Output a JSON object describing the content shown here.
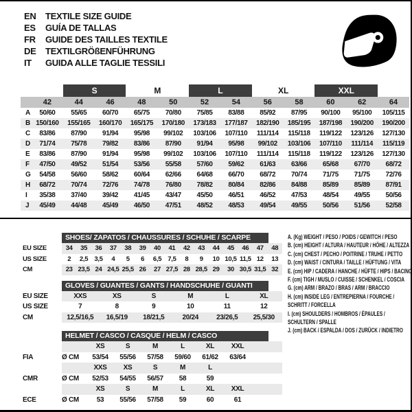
{
  "header": {
    "languages": [
      {
        "code": "EN",
        "title": "TEXTILE SIZE GUIDE"
      },
      {
        "code": "ES",
        "title": "GUÍA DE TALLAS"
      },
      {
        "code": "FR",
        "title": "GUIDE DES TAILLES TEXTILE"
      },
      {
        "code": "DE",
        "title": "TEXTILGRÖßENFÜHRUNG"
      },
      {
        "code": "IT",
        "title": "GUIDA ALLE TAGLIE TESSILI"
      }
    ]
  },
  "size_table": {
    "groups": [
      {
        "label": "S",
        "dark": true
      },
      {
        "label": "M",
        "dark": false
      },
      {
        "label": "L",
        "dark": true
      },
      {
        "label": "XL",
        "dark": false
      },
      {
        "label": "XXL",
        "dark": true
      }
    ],
    "columns": [
      "42",
      "44",
      "46",
      "48",
      "50",
      "52",
      "54",
      "56",
      "58",
      "60",
      "62",
      "64"
    ],
    "rows": [
      {
        "label": "A",
        "shaded": false,
        "values": [
          "50/60",
          "55/65",
          "60/70",
          "65/75",
          "70/80",
          "75/85",
          "83/88",
          "85/92",
          "87/95",
          "90/100",
          "95/100",
          "105/115"
        ]
      },
      {
        "label": "B",
        "shaded": true,
        "values": [
          "150/160",
          "155/165",
          "160/170",
          "165/175",
          "170/180",
          "173/183",
          "177/187",
          "182/190",
          "185/195",
          "187/198",
          "190/200",
          "190/200"
        ]
      },
      {
        "label": "C",
        "shaded": false,
        "values": [
          "83/86",
          "87/90",
          "91/94",
          "95/98",
          "99/102",
          "103/106",
          "107/110",
          "111/114",
          "115/118",
          "119/122",
          "123/126",
          "127/130"
        ]
      },
      {
        "label": "D",
        "shaded": true,
        "values": [
          "71/74",
          "75/78",
          "79/82",
          "83/86",
          "87/90",
          "91/94",
          "95/98",
          "99/102",
          "103/106",
          "107/110",
          "111/114",
          "115/119"
        ]
      },
      {
        "label": "E",
        "shaded": false,
        "values": [
          "83/86",
          "87/90",
          "91/94",
          "95/98",
          "99/102",
          "103/106",
          "107/110",
          "111/114",
          "115/118",
          "119/122",
          "123/126",
          "127/130"
        ]
      },
      {
        "label": "F",
        "shaded": true,
        "values": [
          "47/50",
          "49/52",
          "51/54",
          "53/56",
          "55/58",
          "57/60",
          "59/62",
          "61/63",
          "63/66",
          "65/68",
          "67/70",
          "68/72"
        ]
      },
      {
        "label": "G",
        "shaded": false,
        "values": [
          "54/58",
          "56/60",
          "58/62",
          "60/64",
          "62/66",
          "64/68",
          "66/70",
          "68/72",
          "70/74",
          "71/75",
          "71/75",
          "72/76"
        ]
      },
      {
        "label": "H",
        "shaded": true,
        "values": [
          "68/72",
          "70/74",
          "72/76",
          "74/78",
          "76/80",
          "78/82",
          "80/84",
          "82/86",
          "84/88",
          "85/89",
          "85/89",
          "87/91"
        ]
      },
      {
        "label": "I",
        "shaded": false,
        "values": [
          "35/38",
          "37/40",
          "39/42",
          "41/45",
          "43/47",
          "45/50",
          "46/51",
          "46/52",
          "47/53",
          "48/54",
          "49/55",
          "50/56"
        ]
      },
      {
        "label": "J",
        "shaded": true,
        "values": [
          "45/49",
          "44/48",
          "45/49",
          "46/50",
          "47/51",
          "48/52",
          "48/53",
          "49/54",
          "49/55",
          "50/56",
          "51/56",
          "52/58"
        ]
      }
    ]
  },
  "shoes": {
    "title": "SHOES/ ZAPATOS / CHAUSSURES / SCHUHE / SCARPE",
    "rows": [
      {
        "label": "EU SIZE",
        "shaded": true,
        "values": [
          "34",
          "35",
          "36",
          "37",
          "38",
          "39",
          "40",
          "41",
          "42",
          "43",
          "44",
          "45",
          "46",
          "47",
          "48"
        ]
      },
      {
        "label": "US SIZE",
        "shaded": false,
        "values": [
          "2",
          "2,5",
          "3,5",
          "4",
          "5",
          "6",
          "6,5",
          "7,5",
          "8",
          "9",
          "10",
          "10,5",
          "11,5",
          "12",
          "13"
        ]
      },
      {
        "label": "CM",
        "shaded": true,
        "values": [
          "23",
          "23,5",
          "24",
          "24,5",
          "25,5",
          "26",
          "27",
          "27,5",
          "28",
          "28,5",
          "29",
          "30",
          "30,5",
          "31,5",
          "32"
        ]
      }
    ]
  },
  "gloves": {
    "title": "GLOVES / GUANTES / GANTS / HANDSCHUHE / GUANTI",
    "rows": [
      {
        "label": "EU SIZE",
        "shaded": true,
        "values": [
          "XXS",
          "XS",
          "S",
          "M",
          "L",
          "XL"
        ]
      },
      {
        "label": "US SIZE",
        "shaded": false,
        "values": [
          "7",
          "8",
          "9",
          "10",
          "11",
          "12"
        ]
      },
      {
        "label": "CM",
        "shaded": true,
        "values": [
          "12,5/16,5",
          "16,5/19",
          "18/21,5",
          "20/24",
          "23/26,5",
          "25,5/30"
        ]
      }
    ]
  },
  "helmet": {
    "title": "HELMET / CASCO / CASQUE / HELM / CASCO",
    "diameter_label": "Ø CM",
    "standards": [
      {
        "name": "FIA",
        "sizes": [
          "XS",
          "S",
          "M",
          "L",
          "XL",
          "XXL"
        ],
        "values": [
          "53/54",
          "55/56",
          "57/58",
          "59/60",
          "61/62",
          "63/64"
        ]
      },
      {
        "name": "CMR",
        "sizes": [
          "XXS",
          "XS",
          "S",
          "M",
          "L",
          ""
        ],
        "values": [
          "52/53",
          "54/55",
          "56/57",
          "58",
          "59",
          ""
        ]
      },
      {
        "name": "ECE",
        "sizes": [
          "XS",
          "S",
          "M",
          "L",
          "XL",
          "XXL"
        ],
        "values": [
          "53",
          "55/56",
          "57/58",
          "59",
          "60",
          "61"
        ]
      }
    ]
  },
  "legend": {
    "items": [
      {
        "lines": [
          "A. (Kg) WEIGHT / PESO / POIDS / GEWITCH / PESO"
        ]
      },
      {
        "lines": [
          "B. (cm) HEIGHT / ALTURA / HAUTEUR / HÖHE / ALTEZZA"
        ]
      },
      {
        "lines": [
          "C. (cm) CHEST / PECHO / POITRINE / TRUHE / PETTO"
        ]
      },
      {
        "lines": [
          "D. (cm) WAIST / CINTURA / TAILLE / HÜFTUNG / VITA"
        ]
      },
      {
        "lines": [
          "E. (cm) HIP / CADERA / HANCHE / HÜFTE / HIPS / BACINO"
        ]
      },
      {
        "lines": [
          "F. (cm) TIGH / MUSLO / CUISSE / SCHENKEL / COSCIA"
        ]
      },
      {
        "lines": [
          "G. (cm) ARM / BRAZO / BRAS / ARM / BRACCIO"
        ]
      },
      {
        "lines": [
          "H. (cm) INSIDE LEG / ENTREPIERNA / FOURCHE /",
          "SCHRITT / FORCELLA"
        ]
      },
      {
        "lines": [
          "I. (cm) SHOULDERS / HOMBROS / ÉPAULES /",
          "SCHULTERN / SPALLE"
        ]
      },
      {
        "lines": [
          "J. (cm) BACK / ESPALDA / DOS / ZURÜCK / INDIETRO"
        ]
      }
    ]
  },
  "colors": {
    "dark_bar": "#3d3d3d",
    "column_band": "#c5c5c5",
    "row_stripe": "#ececec",
    "ink": "#141414"
  }
}
